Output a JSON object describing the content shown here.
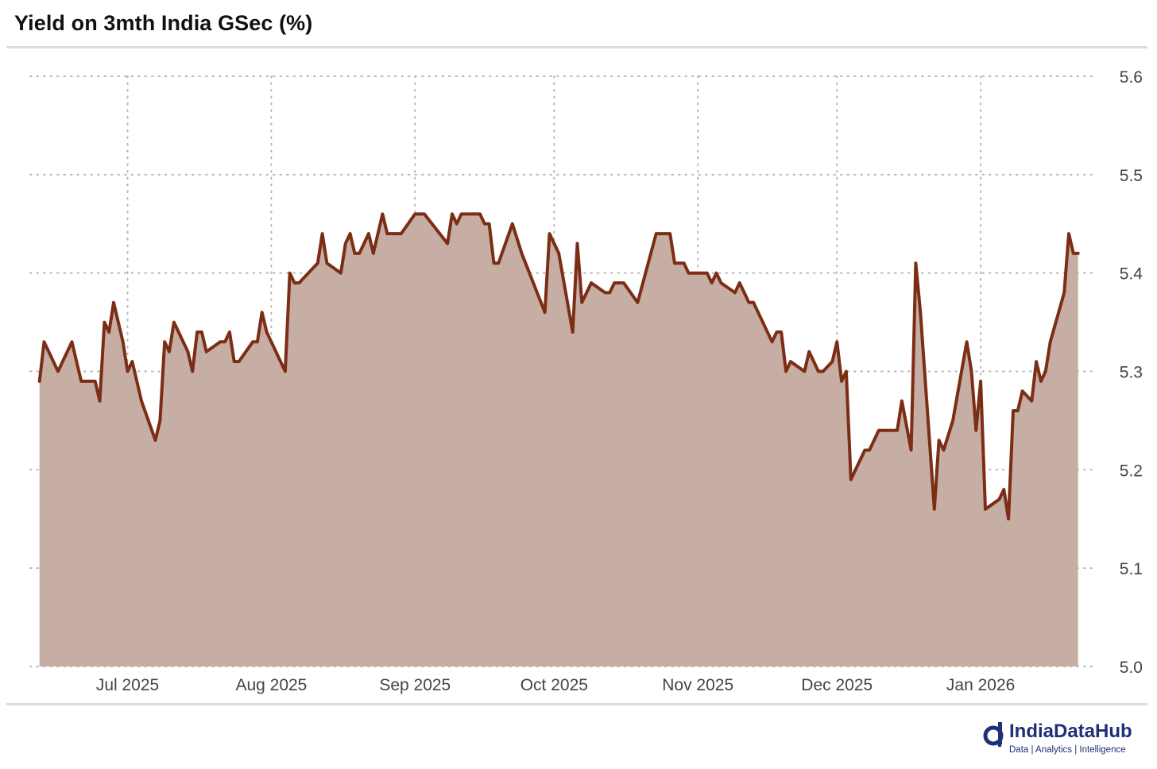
{
  "chart_data": {
    "type": "area",
    "title": "Yield on 3mth India GSec (%)",
    "xlabel": "",
    "ylabel": "",
    "ylim": [
      5.0,
      5.6
    ],
    "yticks": [
      "5.6",
      "5.5",
      "5.4",
      "5.3",
      "5.2",
      "5.1",
      "5.0"
    ],
    "xlim": [
      "2025-06-10",
      "2026-01-26"
    ],
    "xticks": [
      {
        "date": "2025-07-01",
        "label": "Jul 2025"
      },
      {
        "date": "2025-08-01",
        "label": "Aug 2025"
      },
      {
        "date": "2025-09-01",
        "label": "Sep 2025"
      },
      {
        "date": "2025-10-01",
        "label": "Oct 2025"
      },
      {
        "date": "2025-11-01",
        "label": "Nov 2025"
      },
      {
        "date": "2025-12-01",
        "label": "Dec 2025"
      },
      {
        "date": "2026-01-01",
        "label": "Jan 2026"
      }
    ],
    "y_axis_position": "right",
    "grid": true,
    "legend": "none",
    "colors": {
      "line": "#7b2e15",
      "fill": "#c6aea4"
    },
    "points": [
      [
        "2025-06-12",
        5.29
      ],
      [
        "2025-06-13",
        5.33
      ],
      [
        "2025-06-16",
        5.3
      ],
      [
        "2025-06-19",
        5.33
      ],
      [
        "2025-06-20",
        5.31
      ],
      [
        "2025-06-21",
        5.29
      ],
      [
        "2025-06-24",
        5.29
      ],
      [
        "2025-06-25",
        5.27
      ],
      [
        "2025-06-26",
        5.35
      ],
      [
        "2025-06-27",
        5.34
      ],
      [
        "2025-06-28",
        5.37
      ],
      [
        "2025-06-30",
        5.33
      ],
      [
        "2025-07-01",
        5.3
      ],
      [
        "2025-07-02",
        5.31
      ],
      [
        "2025-07-04",
        5.27
      ],
      [
        "2025-07-07",
        5.23
      ],
      [
        "2025-07-08",
        5.25
      ],
      [
        "2025-07-09",
        5.33
      ],
      [
        "2025-07-10",
        5.32
      ],
      [
        "2025-07-11",
        5.35
      ],
      [
        "2025-07-14",
        5.32
      ],
      [
        "2025-07-15",
        5.3
      ],
      [
        "2025-07-16",
        5.34
      ],
      [
        "2025-07-17",
        5.34
      ],
      [
        "2025-07-18",
        5.32
      ],
      [
        "2025-07-21",
        5.33
      ],
      [
        "2025-07-22",
        5.33
      ],
      [
        "2025-07-23",
        5.34
      ],
      [
        "2025-07-24",
        5.31
      ],
      [
        "2025-07-25",
        5.31
      ],
      [
        "2025-07-28",
        5.33
      ],
      [
        "2025-07-29",
        5.33
      ],
      [
        "2025-07-30",
        5.36
      ],
      [
        "2025-07-31",
        5.34
      ],
      [
        "2025-08-01",
        5.33
      ],
      [
        "2025-08-04",
        5.3
      ],
      [
        "2025-08-05",
        5.4
      ],
      [
        "2025-08-06",
        5.39
      ],
      [
        "2025-08-07",
        5.39
      ],
      [
        "2025-08-11",
        5.41
      ],
      [
        "2025-08-12",
        5.44
      ],
      [
        "2025-08-13",
        5.41
      ],
      [
        "2025-08-16",
        5.4
      ],
      [
        "2025-08-17",
        5.43
      ],
      [
        "2025-08-18",
        5.44
      ],
      [
        "2025-08-19",
        5.42
      ],
      [
        "2025-08-20",
        5.42
      ],
      [
        "2025-08-22",
        5.44
      ],
      [
        "2025-08-23",
        5.42
      ],
      [
        "2025-08-25",
        5.46
      ],
      [
        "2025-08-26",
        5.44
      ],
      [
        "2025-08-29",
        5.44
      ],
      [
        "2025-09-01",
        5.46
      ],
      [
        "2025-09-03",
        5.46
      ],
      [
        "2025-09-08",
        5.43
      ],
      [
        "2025-09-09",
        5.46
      ],
      [
        "2025-09-10",
        5.45
      ],
      [
        "2025-09-11",
        5.46
      ],
      [
        "2025-09-15",
        5.46
      ],
      [
        "2025-09-16",
        5.45
      ],
      [
        "2025-09-17",
        5.45
      ],
      [
        "2025-09-18",
        5.41
      ],
      [
        "2025-09-19",
        5.41
      ],
      [
        "2025-09-22",
        5.45
      ],
      [
        "2025-09-24",
        5.42
      ],
      [
        "2025-09-29",
        5.36
      ],
      [
        "2025-09-30",
        5.44
      ],
      [
        "2025-10-02",
        5.42
      ],
      [
        "2025-10-05",
        5.34
      ],
      [
        "2025-10-06",
        5.43
      ],
      [
        "2025-10-07",
        5.37
      ],
      [
        "2025-10-09",
        5.39
      ],
      [
        "2025-10-12",
        5.38
      ],
      [
        "2025-10-13",
        5.38
      ],
      [
        "2025-10-14",
        5.39
      ],
      [
        "2025-10-16",
        5.39
      ],
      [
        "2025-10-19",
        5.37
      ],
      [
        "2025-10-23",
        5.44
      ],
      [
        "2025-10-26",
        5.44
      ],
      [
        "2025-10-27",
        5.41
      ],
      [
        "2025-10-29",
        5.41
      ],
      [
        "2025-10-30",
        5.4
      ],
      [
        "2025-11-03",
        5.4
      ],
      [
        "2025-11-04",
        5.39
      ],
      [
        "2025-11-05",
        5.4
      ],
      [
        "2025-11-06",
        5.39
      ],
      [
        "2025-11-09",
        5.38
      ],
      [
        "2025-11-10",
        5.39
      ],
      [
        "2025-11-11",
        5.38
      ],
      [
        "2025-11-12",
        5.37
      ],
      [
        "2025-11-13",
        5.37
      ],
      [
        "2025-11-17",
        5.33
      ],
      [
        "2025-11-18",
        5.34
      ],
      [
        "2025-11-19",
        5.34
      ],
      [
        "2025-11-20",
        5.3
      ],
      [
        "2025-11-21",
        5.31
      ],
      [
        "2025-11-24",
        5.3
      ],
      [
        "2025-11-25",
        5.32
      ],
      [
        "2025-11-26",
        5.31
      ],
      [
        "2025-11-27",
        5.3
      ],
      [
        "2025-11-28",
        5.3
      ],
      [
        "2025-11-30",
        5.31
      ],
      [
        "2025-12-01",
        5.33
      ],
      [
        "2025-12-02",
        5.29
      ],
      [
        "2025-12-03",
        5.3
      ],
      [
        "2025-12-04",
        5.19
      ],
      [
        "2025-12-07",
        5.22
      ],
      [
        "2025-12-08",
        5.22
      ],
      [
        "2025-12-10",
        5.24
      ],
      [
        "2025-12-14",
        5.24
      ],
      [
        "2025-12-15",
        5.27
      ],
      [
        "2025-12-17",
        5.22
      ],
      [
        "2025-12-18",
        5.41
      ],
      [
        "2025-12-19",
        5.36
      ],
      [
        "2025-12-22",
        5.16
      ],
      [
        "2025-12-23",
        5.23
      ],
      [
        "2025-12-24",
        5.22
      ],
      [
        "2025-12-26",
        5.25
      ],
      [
        "2025-12-29",
        5.33
      ],
      [
        "2025-12-30",
        5.3
      ],
      [
        "2025-12-31",
        5.24
      ],
      [
        "2026-01-01",
        5.29
      ],
      [
        "2026-01-02",
        5.16
      ],
      [
        "2026-01-05",
        5.17
      ],
      [
        "2026-01-06",
        5.18
      ],
      [
        "2026-01-07",
        5.15
      ],
      [
        "2026-01-08",
        5.26
      ],
      [
        "2026-01-09",
        5.26
      ],
      [
        "2026-01-10",
        5.28
      ],
      [
        "2026-01-12",
        5.27
      ],
      [
        "2026-01-13",
        5.31
      ],
      [
        "2026-01-14",
        5.29
      ],
      [
        "2026-01-15",
        5.3
      ],
      [
        "2026-01-16",
        5.33
      ],
      [
        "2026-01-19",
        5.38
      ],
      [
        "2026-01-20",
        5.44
      ],
      [
        "2026-01-21",
        5.42
      ],
      [
        "2026-01-22",
        5.42
      ]
    ]
  },
  "branding": {
    "name": "IndiaDataHub",
    "tagline": "Data | Analytics | Intelligence",
    "color": "#1f2f78"
  }
}
